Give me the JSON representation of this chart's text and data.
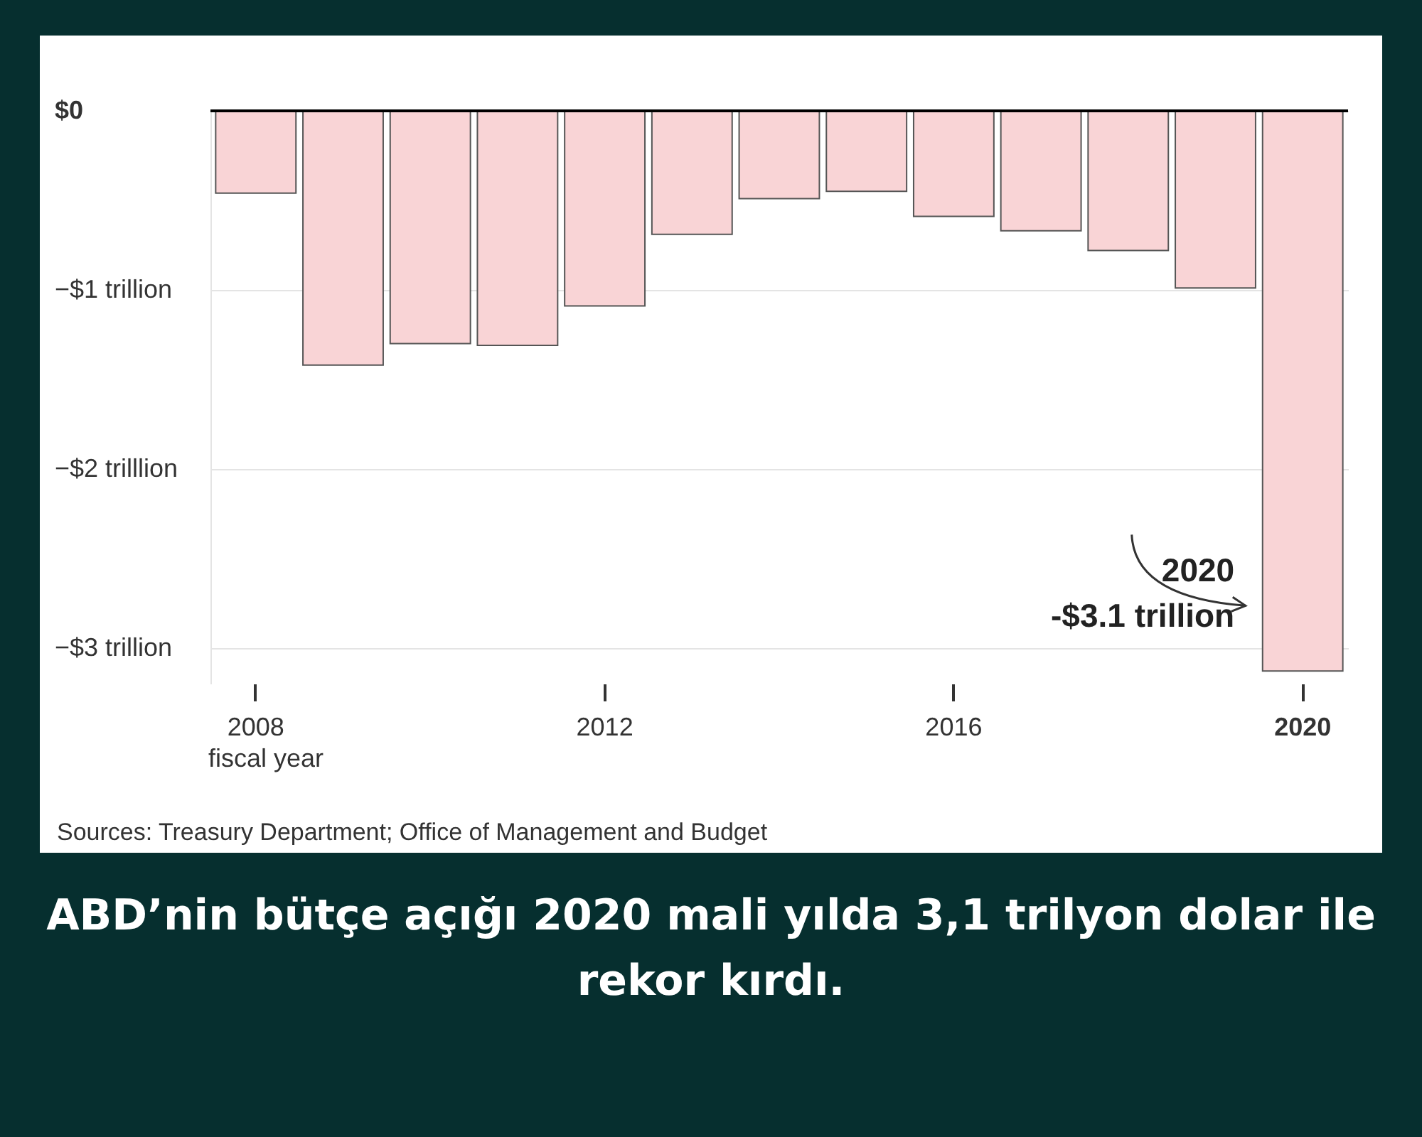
{
  "chart_data": {
    "type": "bar",
    "title": "ABD’nin bütçe açığı 2020 mali yılda 3,1 trilyon dolar ile rekor kırdı.",
    "xlabel": "fiscal year",
    "categories": [
      "2008",
      null,
      null,
      null,
      "2012",
      null,
      null,
      null,
      "2016",
      null,
      null,
      null,
      "2020"
    ],
    "values": [
      -0.46,
      -1.42,
      -1.3,
      -1.31,
      -1.09,
      -0.69,
      -0.49,
      -0.45,
      -0.59,
      -0.67,
      -0.78,
      -0.99,
      -3.13
    ],
    "color": "#f9d4d6",
    "ylim": [
      -3.2,
      0
    ],
    "yticks": [
      {
        "value": 0,
        "label": "$0"
      },
      {
        "value": -1,
        "label": "−$1 trillion"
      },
      {
        "value": -2,
        "label": "−$2 trilllion"
      },
      {
        "value": -3,
        "label": "−$3 trillion"
      }
    ],
    "grid": true,
    "annotations": [
      {
        "text": "2020\n-$3.1 trillion",
        "x": "2020",
        "y": -3.13
      },
      "Sources: Treasury Department; Office of Management and Budget"
    ]
  }
}
